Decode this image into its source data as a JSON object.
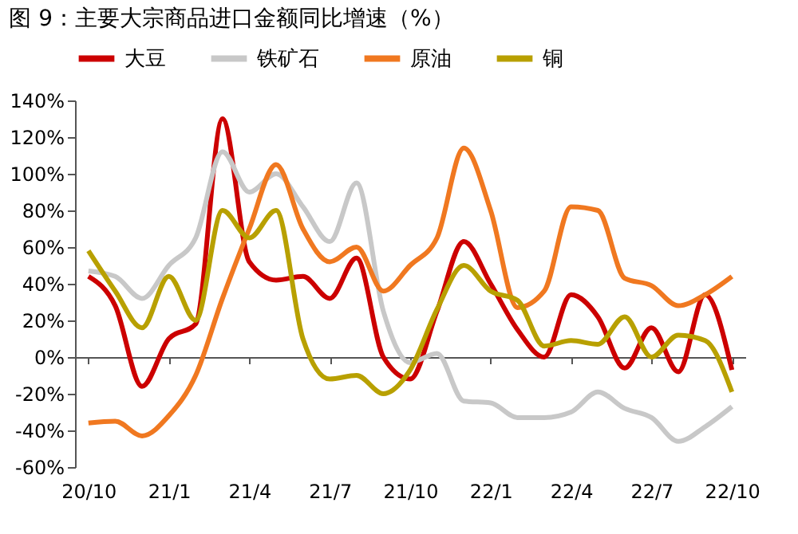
{
  "chart_data": {
    "type": "line",
    "title": "图 9：主要大宗商品进口金额同比增速（%）",
    "categories": [
      "20/10",
      null,
      null,
      "21/1",
      null,
      null,
      "21/4",
      null,
      null,
      "21/7",
      null,
      null,
      "21/10",
      null,
      null,
      "22/1",
      null,
      null,
      "22/4",
      null,
      null,
      "22/7",
      null,
      null,
      "22/10"
    ],
    "series": [
      {
        "name": "大豆",
        "color": "#cc0000",
        "values": [
          44,
          28,
          -16,
          10,
          18,
          130,
          52,
          42,
          44,
          32,
          54,
          0,
          -12,
          25,
          63,
          40,
          15,
          0,
          34,
          22,
          -6,
          16,
          -8,
          34,
          -7
        ]
      },
      {
        "name": "铁矿石",
        "color": "#c8c8c8",
        "values": [
          47,
          44,
          32,
          50,
          65,
          112,
          90,
          100,
          82,
          63,
          95,
          25,
          -3,
          2,
          -24,
          -25,
          -33,
          -33,
          -30,
          -19,
          -28,
          -33,
          -46,
          -38,
          -27
        ]
      },
      {
        "name": "原油",
        "color": "#f07820",
        "values": [
          -36,
          -35,
          -43,
          -32,
          -10,
          32,
          70,
          105,
          70,
          52,
          60,
          36,
          50,
          65,
          114,
          80,
          27,
          36,
          82,
          80,
          43,
          39,
          28,
          34,
          44
        ]
      },
      {
        "name": "铜",
        "color": "#b8a000",
        "values": [
          58,
          36,
          16,
          44,
          20,
          80,
          65,
          80,
          10,
          -12,
          -10,
          -20,
          -7,
          26,
          50,
          36,
          31,
          6,
          9,
          7,
          22,
          0,
          12,
          9,
          -19
        ]
      }
    ],
    "ylim": [
      -60,
      140
    ],
    "yticks": [
      {
        "value": -60,
        "label": "-60%"
      },
      {
        "value": -40,
        "label": "-40%"
      },
      {
        "value": -20,
        "label": "-20%"
      },
      {
        "value": 0,
        "label": "0%"
      },
      {
        "value": 20,
        "label": "20%"
      },
      {
        "value": 40,
        "label": "40%"
      },
      {
        "value": 60,
        "label": "60%"
      },
      {
        "value": 80,
        "label": "80%"
      },
      {
        "value": 100,
        "label": "100%"
      },
      {
        "value": 120,
        "label": "120%"
      },
      {
        "value": 140,
        "label": "140%"
      }
    ],
    "legend": "top",
    "marker": "none",
    "line_style": "solid"
  }
}
